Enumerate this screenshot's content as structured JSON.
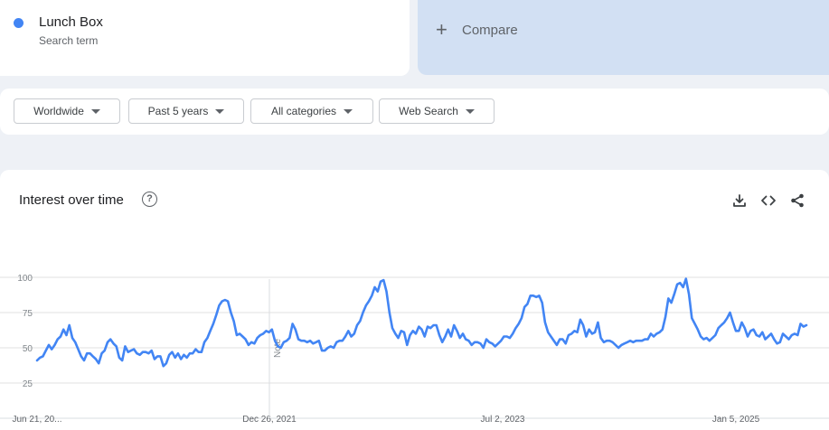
{
  "search_term": {
    "name": "Lunch Box",
    "subtitle": "Search term",
    "color": "#4285f4"
  },
  "compare": {
    "label": "Compare",
    "icon": "plus-icon"
  },
  "filters": [
    {
      "label": "Worldwide",
      "icon": "caret-down-icon"
    },
    {
      "label": "Past 5 years",
      "icon": "caret-down-icon"
    },
    {
      "label": "All categories",
      "icon": "caret-down-icon"
    },
    {
      "label": "Web Search",
      "icon": "caret-down-icon"
    }
  ],
  "chart_header": {
    "title": "Interest over time",
    "help_icon": "help-icon",
    "tools": [
      "download-icon",
      "embed-code-icon",
      "share-icon"
    ]
  },
  "chart_data": {
    "type": "line",
    "yticks": [
      100,
      75,
      50,
      25
    ],
    "ylim": [
      0,
      100
    ],
    "xtick_labels": [
      "Jun 21, 20...",
      "Dec 26, 2021",
      "Jul 2, 2023",
      "Jan 5, 2025"
    ],
    "annotation": "Note",
    "grid": true,
    "series": [
      {
        "color": "#4285f4",
        "values": [
          41,
          43,
          44,
          48,
          52,
          49,
          52,
          56,
          58,
          63,
          59,
          66,
          57,
          54,
          49,
          44,
          41,
          46,
          46,
          44,
          42,
          39,
          46,
          48,
          54,
          56,
          53,
          51,
          43,
          41,
          51,
          47,
          48,
          49,
          46,
          45,
          47,
          47,
          46,
          48,
          42,
          44,
          44,
          37,
          39,
          45,
          47,
          43,
          46,
          42,
          45,
          43,
          46,
          46,
          49,
          47,
          47,
          54,
          57,
          62,
          67,
          73,
          80,
          83,
          84,
          83,
          75,
          69,
          59,
          60,
          58,
          56,
          52,
          54,
          53,
          57,
          59,
          60,
          62,
          61,
          63,
          55,
          51,
          50,
          54,
          55,
          57,
          67,
          63,
          56,
          55,
          55,
          54,
          55,
          53,
          54,
          55,
          48,
          48,
          50,
          51,
          50,
          54,
          55,
          55,
          58,
          62,
          58,
          60,
          66,
          69,
          75,
          80,
          83,
          87,
          93,
          90,
          97,
          98,
          90,
          75,
          64,
          60,
          57,
          62,
          61,
          52,
          59,
          62,
          60,
          65,
          63,
          58,
          65,
          64,
          66,
          66,
          59,
          54,
          58,
          63,
          58,
          66,
          62,
          57,
          60,
          56,
          55,
          52,
          54,
          54,
          53,
          50,
          56,
          54,
          53,
          51,
          53,
          55,
          58,
          58,
          57,
          60,
          64,
          67,
          71,
          79,
          81,
          87,
          87,
          86,
          87,
          82,
          68,
          61,
          58,
          55,
          52,
          56,
          56,
          53,
          59,
          60,
          62,
          61,
          70,
          66,
          58,
          63,
          60,
          61,
          68,
          57,
          54,
          55,
          55,
          54,
          52,
          50,
          52,
          53,
          54,
          55,
          54,
          55,
          55,
          55,
          56,
          56,
          60,
          58,
          60,
          61,
          63,
          72,
          85,
          82,
          88,
          95,
          96,
          93,
          99,
          88,
          71,
          67,
          63,
          58,
          56,
          57,
          55,
          57,
          59,
          64,
          66,
          68,
          71,
          75,
          68,
          62,
          62,
          68,
          64,
          58,
          62,
          63,
          59,
          58,
          61,
          56,
          58,
          60,
          56,
          53,
          54,
          60,
          58,
          56,
          59,
          60,
          59,
          67,
          65,
          66
        ]
      }
    ]
  }
}
